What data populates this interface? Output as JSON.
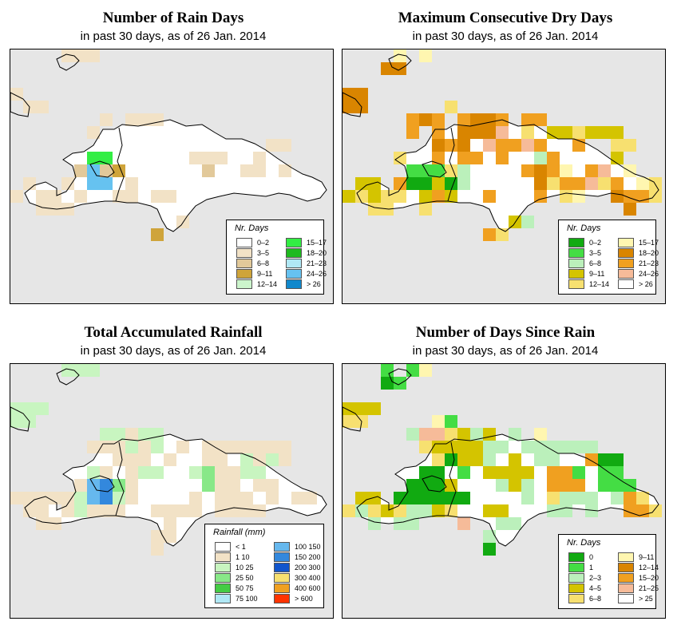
{
  "subtitle": "in past 30 days, as of  26 Jan. 2014",
  "colors": {
    "sea": "#e6e6e6",
    "land": "#ffffff",
    "coast": "#000000"
  },
  "panels": [
    {
      "title": "Number of Rain Days",
      "legend_title": "Nr. Days",
      "legend_items": [
        {
          "label": "0–2",
          "color": "#ffffff"
        },
        {
          "label": "3–5",
          "color": "#f2e2c6"
        },
        {
          "label": "6–8",
          "color": "#e2c99a"
        },
        {
          "label": "9–11",
          "color": "#cfa43a"
        },
        {
          "label": "12–14",
          "color": "#ccf5cc"
        },
        {
          "label": "15–17",
          "color": "#33ee44"
        },
        {
          "label": "18–20",
          "color": "#1fba1f"
        },
        {
          "label": "21–23",
          "color": "#b0e8f5"
        },
        {
          "label": "24–26",
          "color": "#66c2f0"
        },
        {
          "label": "> 26",
          "color": "#1188cc"
        }
      ]
    },
    {
      "title": "Maximum Consecutive Dry Days",
      "legend_title": "Nr. Days",
      "legend_items": [
        {
          "label": "0–2",
          "color": "#11aa11"
        },
        {
          "label": "3–5",
          "color": "#44dd44"
        },
        {
          "label": "6–8",
          "color": "#bbf0bb"
        },
        {
          "label": "9–11",
          "color": "#d4c400"
        },
        {
          "label": "12–14",
          "color": "#f7e070"
        },
        {
          "label": "15–17",
          "color": "#fff6b0"
        },
        {
          "label": "18–20",
          "color": "#d98500"
        },
        {
          "label": "21–23",
          "color": "#f0a020"
        },
        {
          "label": "24–26",
          "color": "#f6bb99"
        },
        {
          "label": "> 26",
          "color": "#ffffff"
        }
      ]
    },
    {
      "title": "Total Accumulated Rainfall",
      "legend_title": "Rainfall (mm)",
      "legend_items": [
        {
          "label": "< 1",
          "color": "#ffffff"
        },
        {
          "label": "1    10",
          "color": "#f2e2c6"
        },
        {
          "label": "10    25",
          "color": "#c8f5c0"
        },
        {
          "label": "25    50",
          "color": "#88e888"
        },
        {
          "label": "50    75",
          "color": "#44cc44"
        },
        {
          "label": "75    100",
          "color": "#b0e8f5"
        },
        {
          "label": "100    150",
          "color": "#66b8ee"
        },
        {
          "label": "150    200",
          "color": "#3388dd"
        },
        {
          "label": "200    300",
          "color": "#1155cc"
        },
        {
          "label": "300    400",
          "color": "#f7e070"
        },
        {
          "label": "400    600",
          "color": "#f0a020"
        },
        {
          "label": "> 600",
          "color": "#ff3300"
        }
      ]
    },
    {
      "title": "Number of Days Since Rain",
      "legend_title": "Nr. Days",
      "legend_items": [
        {
          "label": "0",
          "color": "#11aa11"
        },
        {
          "label": "1",
          "color": "#44dd44"
        },
        {
          "label": "2–3",
          "color": "#bbf0bb"
        },
        {
          "label": "4–5",
          "color": "#d4c400"
        },
        {
          "label": "6–8",
          "color": "#f7e070"
        },
        {
          "label": "9–11",
          "color": "#fff6b0"
        },
        {
          "label": "12–14",
          "color": "#d98500"
        },
        {
          "label": "15–20",
          "color": "#f0a020"
        },
        {
          "label": "21–25",
          "color": "#f6bb99"
        },
        {
          "label": "> 25",
          "color": "#ffffff"
        }
      ]
    }
  ]
}
